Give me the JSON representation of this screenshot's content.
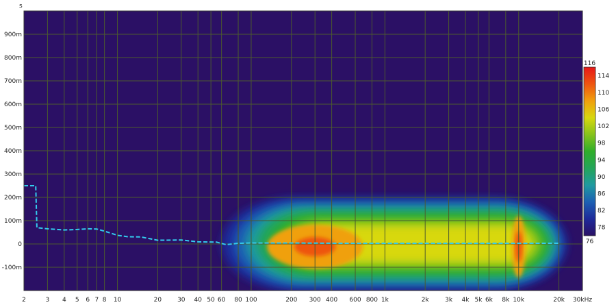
{
  "chart_data": {
    "type": "heatmap",
    "title": "",
    "ylabel": "s",
    "xlabel": "",
    "x_scale": "log",
    "xlim": [
      2,
      30000
    ],
    "ylim": [
      -0.2,
      1.0
    ],
    "x_tick_values": [
      2,
      3,
      4,
      5,
      6,
      7,
      8,
      10,
      20,
      30,
      40,
      50,
      60,
      80,
      100,
      200,
      300,
      400,
      600,
      800,
      1000,
      2000,
      3000,
      4000,
      5000,
      6000,
      8000,
      10000,
      20000,
      30000
    ],
    "x_tick_labels": [
      "2",
      "3",
      "4",
      "5",
      "6",
      "7",
      "8",
      "10",
      "20",
      "30",
      "40",
      "50",
      "60",
      "80",
      "100",
      "200",
      "300",
      "400",
      "600",
      "800",
      "1k",
      "2k",
      "3k",
      "4k",
      "5k",
      "6k",
      "8k",
      "10k",
      "20k",
      "30kHz"
    ],
    "y_tick_values": [
      -0.1,
      0,
      0.1,
      0.2,
      0.3,
      0.4,
      0.5,
      0.6,
      0.7,
      0.8,
      0.9
    ],
    "y_tick_labels": [
      "-100m",
      "0",
      "100m",
      "200m",
      "300m",
      "400m",
      "500m",
      "600m",
      "700m",
      "800m",
      "900m"
    ],
    "grid": true,
    "background_color": "#2b1065",
    "grid_color": "#4c5a2e",
    "colorbar": {
      "min": 76,
      "max": 116,
      "tick_values": [
        76,
        78,
        82,
        86,
        90,
        94,
        98,
        102,
        106,
        110,
        114,
        116
      ],
      "tick_labels": [
        "76",
        "78",
        "82",
        "86",
        "90",
        "94",
        "98",
        "102",
        "106",
        "110",
        "114",
        "116"
      ],
      "colors": [
        "#2b1065",
        "#1e2a9a",
        "#1d5fb3",
        "#1f9aa0",
        "#24a55a",
        "#2fae2a",
        "#86c31c",
        "#d8d80e",
        "#f0a00e",
        "#ee5510",
        "#e81818"
      ]
    },
    "energy_region": {
      "x_start": 60,
      "x_end": 23000,
      "peak_x": [
        300,
        10000
      ],
      "y_spread": [
        -0.2,
        0.2
      ],
      "peak_level": 110
    },
    "group_delay_line": {
      "color": "#33ccee",
      "style": "dashed",
      "x": [
        2,
        2.45,
        2.5,
        3,
        4,
        5,
        6,
        7,
        8,
        10,
        12,
        15,
        20,
        30,
        40,
        55,
        65,
        80,
        100,
        200,
        500,
        1000,
        5000,
        10000,
        20000
      ],
      "y": [
        0.25,
        0.25,
        0.07,
        0.065,
        0.06,
        0.062,
        0.065,
        0.064,
        0.055,
        0.037,
        0.031,
        0.03,
        0.016,
        0.017,
        0.009,
        0.008,
        -0.003,
        0.003,
        0.004,
        0.004,
        0.003,
        0.003,
        0.003,
        0.003,
        0.003
      ]
    }
  }
}
